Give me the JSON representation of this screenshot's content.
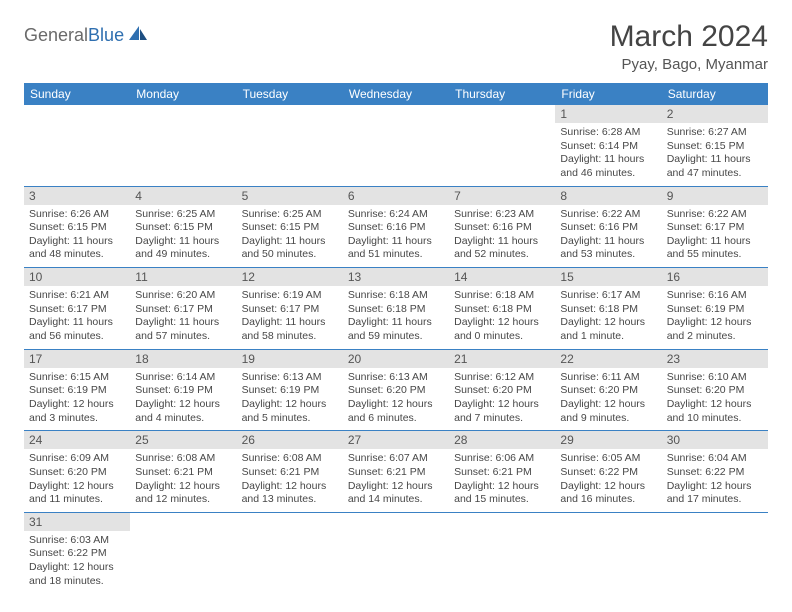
{
  "logo": {
    "general": "General",
    "blue": "Blue"
  },
  "title": "March 2024",
  "location": "Pyay, Bago, Myanmar",
  "colors": {
    "header_bg": "#3a81c4",
    "header_text": "#ffffff",
    "daybar_bg": "#e3e3e3",
    "border": "#3a81c4"
  },
  "dayNames": [
    "Sunday",
    "Monday",
    "Tuesday",
    "Wednesday",
    "Thursday",
    "Friday",
    "Saturday"
  ],
  "firstWeekday": 5,
  "daysInMonth": 31,
  "days": {
    "1": {
      "sunrise": "6:28 AM",
      "sunset": "6:14 PM",
      "daylight": "11 hours and 46 minutes."
    },
    "2": {
      "sunrise": "6:27 AM",
      "sunset": "6:15 PM",
      "daylight": "11 hours and 47 minutes."
    },
    "3": {
      "sunrise": "6:26 AM",
      "sunset": "6:15 PM",
      "daylight": "11 hours and 48 minutes."
    },
    "4": {
      "sunrise": "6:25 AM",
      "sunset": "6:15 PM",
      "daylight": "11 hours and 49 minutes."
    },
    "5": {
      "sunrise": "6:25 AM",
      "sunset": "6:15 PM",
      "daylight": "11 hours and 50 minutes."
    },
    "6": {
      "sunrise": "6:24 AM",
      "sunset": "6:16 PM",
      "daylight": "11 hours and 51 minutes."
    },
    "7": {
      "sunrise": "6:23 AM",
      "sunset": "6:16 PM",
      "daylight": "11 hours and 52 minutes."
    },
    "8": {
      "sunrise": "6:22 AM",
      "sunset": "6:16 PM",
      "daylight": "11 hours and 53 minutes."
    },
    "9": {
      "sunrise": "6:22 AM",
      "sunset": "6:17 PM",
      "daylight": "11 hours and 55 minutes."
    },
    "10": {
      "sunrise": "6:21 AM",
      "sunset": "6:17 PM",
      "daylight": "11 hours and 56 minutes."
    },
    "11": {
      "sunrise": "6:20 AM",
      "sunset": "6:17 PM",
      "daylight": "11 hours and 57 minutes."
    },
    "12": {
      "sunrise": "6:19 AM",
      "sunset": "6:17 PM",
      "daylight": "11 hours and 58 minutes."
    },
    "13": {
      "sunrise": "6:18 AM",
      "sunset": "6:18 PM",
      "daylight": "11 hours and 59 minutes."
    },
    "14": {
      "sunrise": "6:18 AM",
      "sunset": "6:18 PM",
      "daylight": "12 hours and 0 minutes."
    },
    "15": {
      "sunrise": "6:17 AM",
      "sunset": "6:18 PM",
      "daylight": "12 hours and 1 minute."
    },
    "16": {
      "sunrise": "6:16 AM",
      "sunset": "6:19 PM",
      "daylight": "12 hours and 2 minutes."
    },
    "17": {
      "sunrise": "6:15 AM",
      "sunset": "6:19 PM",
      "daylight": "12 hours and 3 minutes."
    },
    "18": {
      "sunrise": "6:14 AM",
      "sunset": "6:19 PM",
      "daylight": "12 hours and 4 minutes."
    },
    "19": {
      "sunrise": "6:13 AM",
      "sunset": "6:19 PM",
      "daylight": "12 hours and 5 minutes."
    },
    "20": {
      "sunrise": "6:13 AM",
      "sunset": "6:20 PM",
      "daylight": "12 hours and 6 minutes."
    },
    "21": {
      "sunrise": "6:12 AM",
      "sunset": "6:20 PM",
      "daylight": "12 hours and 7 minutes."
    },
    "22": {
      "sunrise": "6:11 AM",
      "sunset": "6:20 PM",
      "daylight": "12 hours and 9 minutes."
    },
    "23": {
      "sunrise": "6:10 AM",
      "sunset": "6:20 PM",
      "daylight": "12 hours and 10 minutes."
    },
    "24": {
      "sunrise": "6:09 AM",
      "sunset": "6:20 PM",
      "daylight": "12 hours and 11 minutes."
    },
    "25": {
      "sunrise": "6:08 AM",
      "sunset": "6:21 PM",
      "daylight": "12 hours and 12 minutes."
    },
    "26": {
      "sunrise": "6:08 AM",
      "sunset": "6:21 PM",
      "daylight": "12 hours and 13 minutes."
    },
    "27": {
      "sunrise": "6:07 AM",
      "sunset": "6:21 PM",
      "daylight": "12 hours and 14 minutes."
    },
    "28": {
      "sunrise": "6:06 AM",
      "sunset": "6:21 PM",
      "daylight": "12 hours and 15 minutes."
    },
    "29": {
      "sunrise": "6:05 AM",
      "sunset": "6:22 PM",
      "daylight": "12 hours and 16 minutes."
    },
    "30": {
      "sunrise": "6:04 AM",
      "sunset": "6:22 PM",
      "daylight": "12 hours and 17 minutes."
    },
    "31": {
      "sunrise": "6:03 AM",
      "sunset": "6:22 PM",
      "daylight": "12 hours and 18 minutes."
    }
  },
  "labels": {
    "sunrise": "Sunrise: ",
    "sunset": "Sunset: ",
    "daylight": "Daylight: "
  }
}
